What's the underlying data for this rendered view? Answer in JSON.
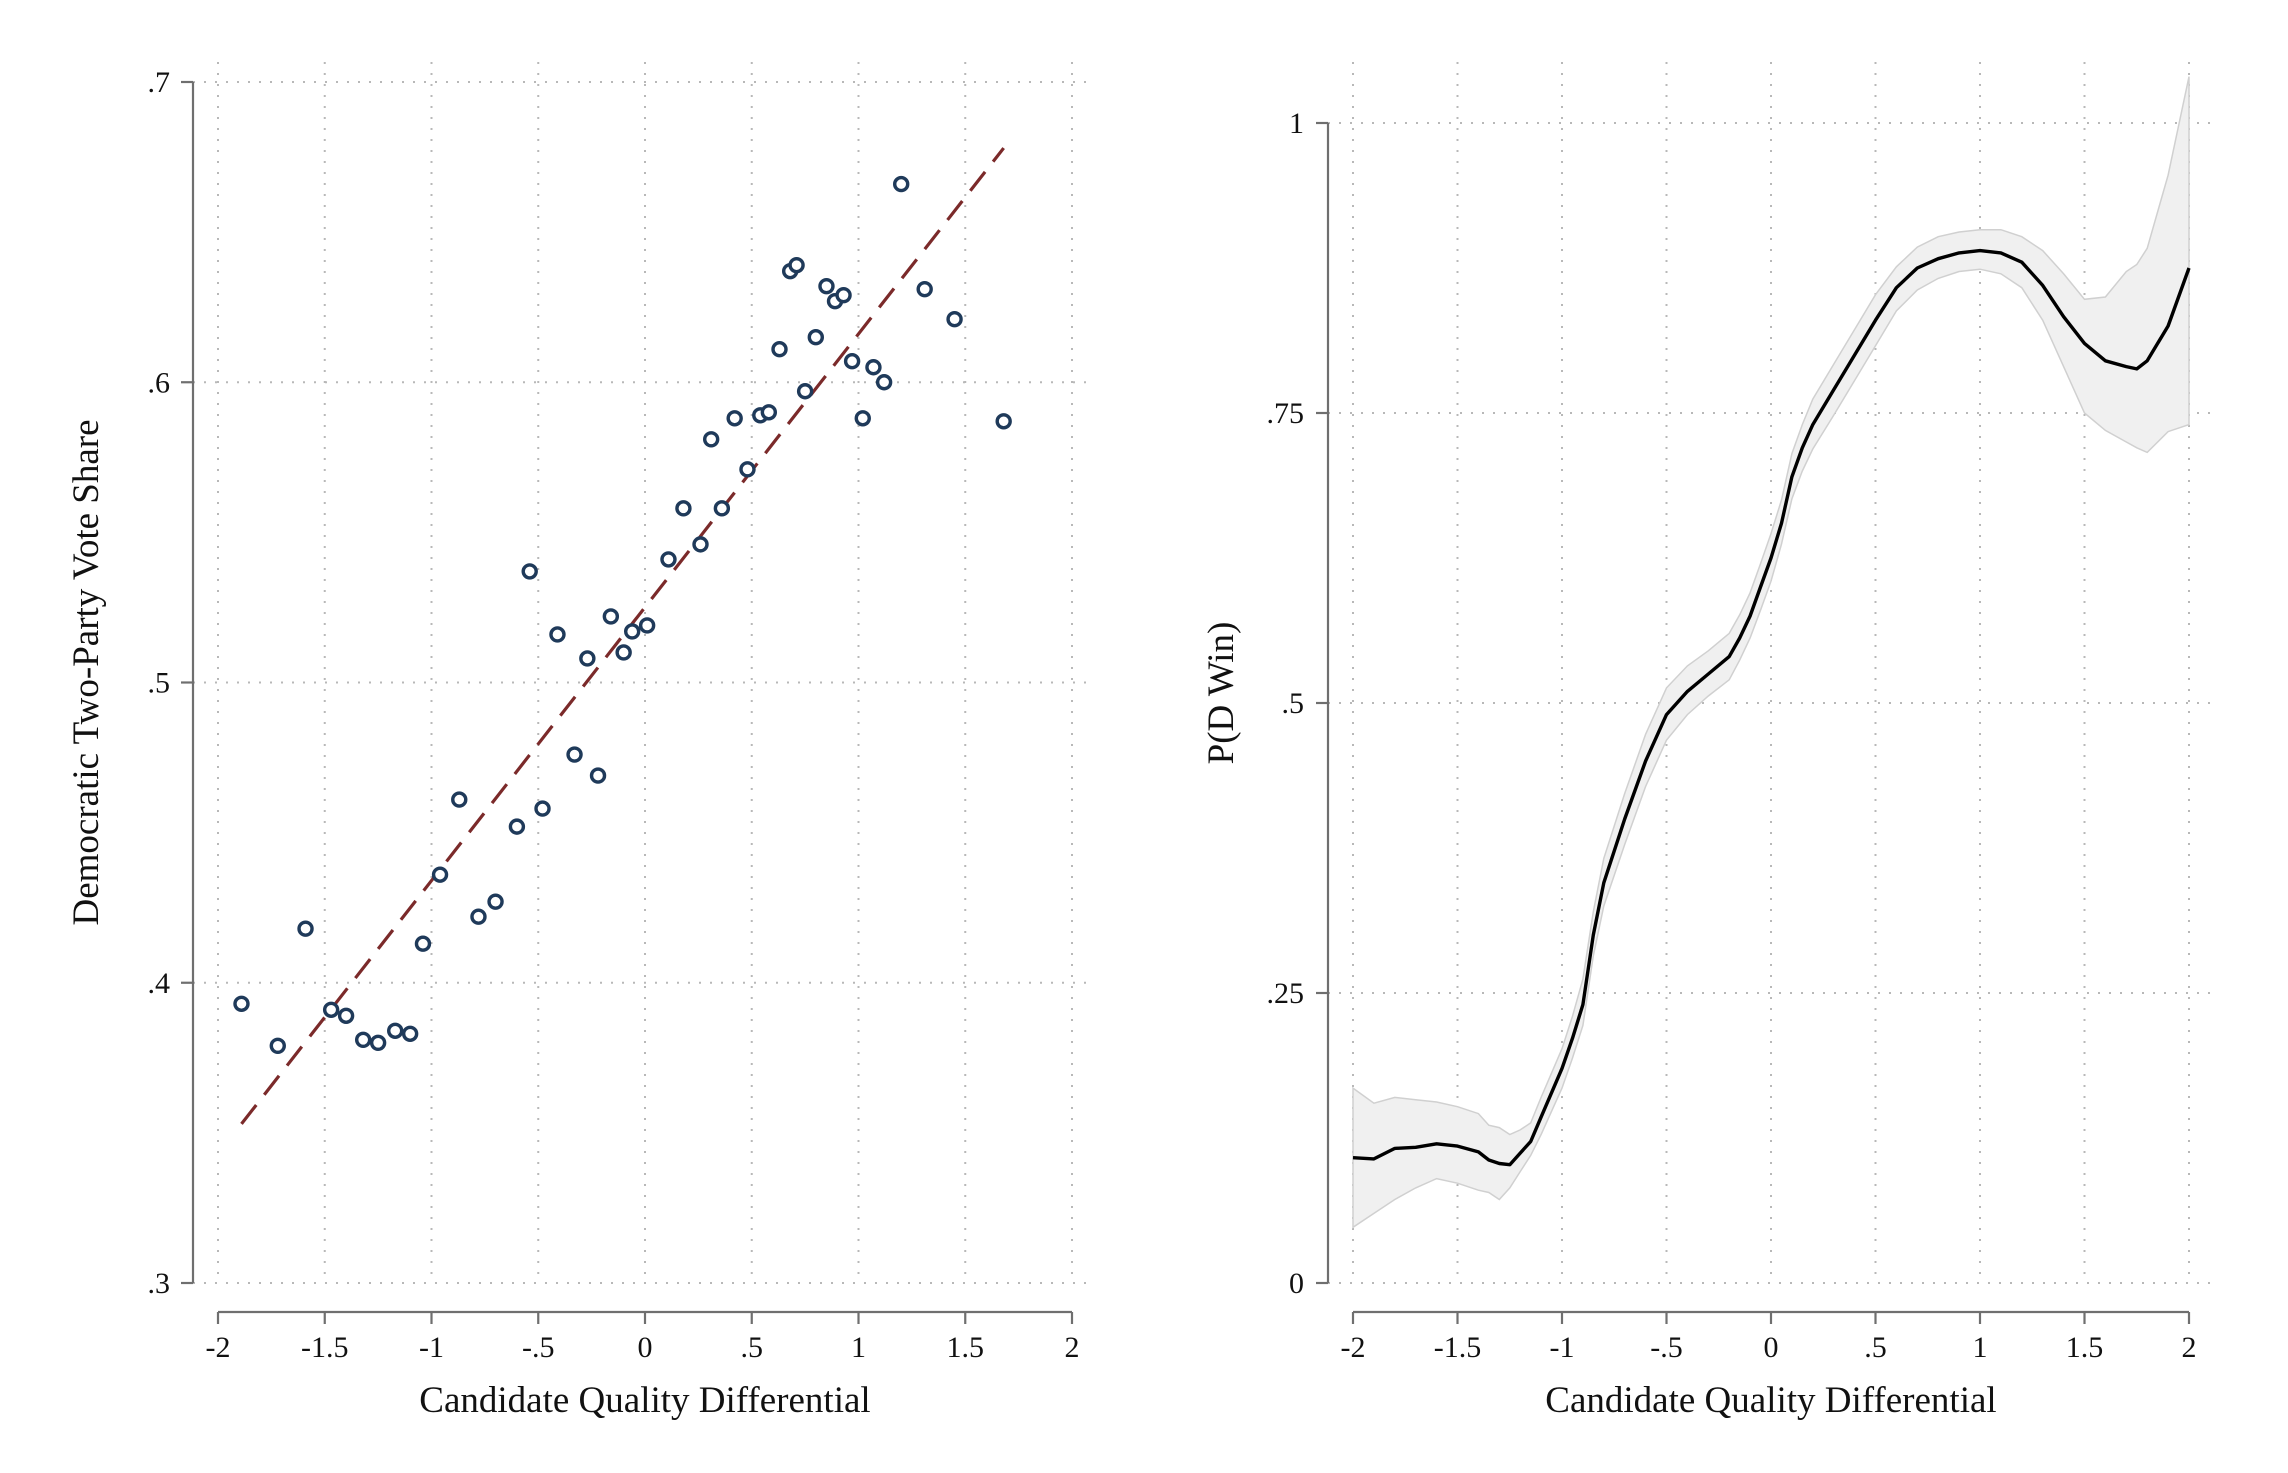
{
  "chart_data": [
    {
      "type": "scatter",
      "xlabel": "Candidate Quality Differential",
      "ylabel": "Democratic Two-Party Vote Share",
      "xlim": [
        -2,
        2
      ],
      "ylim": [
        0.3,
        0.7
      ],
      "xticks": [
        {
          "value": -2,
          "label": "-2"
        },
        {
          "value": -1.5,
          "label": "-1.5"
        },
        {
          "value": -1,
          "label": "-1"
        },
        {
          "value": -0.5,
          "label": "-.5"
        },
        {
          "value": 0,
          "label": "0"
        },
        {
          "value": 0.5,
          "label": ".5"
        },
        {
          "value": 1,
          "label": "1"
        },
        {
          "value": 1.5,
          "label": "1.5"
        },
        {
          "value": 2,
          "label": "2"
        }
      ],
      "yticks": [
        {
          "value": 0.3,
          "label": ".3"
        },
        {
          "value": 0.4,
          "label": ".4"
        },
        {
          "value": 0.5,
          "label": ".5"
        },
        {
          "value": 0.6,
          "label": ".6"
        },
        {
          "value": 0.7,
          "label": ".7"
        }
      ],
      "grid": true,
      "marker_color": "#1f3a5a",
      "fit_color": "#7b2a2a",
      "points": [
        {
          "x": -1.89,
          "y": 0.393
        },
        {
          "x": -1.72,
          "y": 0.379
        },
        {
          "x": -1.59,
          "y": 0.418
        },
        {
          "x": -1.47,
          "y": 0.391
        },
        {
          "x": -1.4,
          "y": 0.389
        },
        {
          "x": -1.32,
          "y": 0.381
        },
        {
          "x": -1.25,
          "y": 0.38
        },
        {
          "x": -1.17,
          "y": 0.384
        },
        {
          "x": -1.1,
          "y": 0.383
        },
        {
          "x": -1.04,
          "y": 0.413
        },
        {
          "x": -0.96,
          "y": 0.436
        },
        {
          "x": -0.87,
          "y": 0.461
        },
        {
          "x": -0.78,
          "y": 0.422
        },
        {
          "x": -0.7,
          "y": 0.427
        },
        {
          "x": -0.6,
          "y": 0.452
        },
        {
          "x": -0.54,
          "y": 0.537
        },
        {
          "x": -0.48,
          "y": 0.458
        },
        {
          "x": -0.41,
          "y": 0.516
        },
        {
          "x": -0.33,
          "y": 0.476
        },
        {
          "x": -0.27,
          "y": 0.508
        },
        {
          "x": -0.22,
          "y": 0.469
        },
        {
          "x": -0.16,
          "y": 0.522
        },
        {
          "x": -0.1,
          "y": 0.51
        },
        {
          "x": -0.06,
          "y": 0.517
        },
        {
          "x": 0.01,
          "y": 0.519
        },
        {
          "x": 0.11,
          "y": 0.541
        },
        {
          "x": 0.18,
          "y": 0.558
        },
        {
          "x": 0.26,
          "y": 0.546
        },
        {
          "x": 0.31,
          "y": 0.581
        },
        {
          "x": 0.36,
          "y": 0.558
        },
        {
          "x": 0.42,
          "y": 0.588
        },
        {
          "x": 0.48,
          "y": 0.571
        },
        {
          "x": 0.54,
          "y": 0.589
        },
        {
          "x": 0.58,
          "y": 0.59
        },
        {
          "x": 0.63,
          "y": 0.611
        },
        {
          "x": 0.68,
          "y": 0.637
        },
        {
          "x": 0.71,
          "y": 0.639
        },
        {
          "x": 0.75,
          "y": 0.597
        },
        {
          "x": 0.8,
          "y": 0.615
        },
        {
          "x": 0.85,
          "y": 0.632
        },
        {
          "x": 0.89,
          "y": 0.627
        },
        {
          "x": 0.93,
          "y": 0.629
        },
        {
          "x": 0.97,
          "y": 0.607
        },
        {
          "x": 1.02,
          "y": 0.588
        },
        {
          "x": 1.07,
          "y": 0.605
        },
        {
          "x": 1.12,
          "y": 0.6
        },
        {
          "x": 1.2,
          "y": 0.666
        },
        {
          "x": 1.31,
          "y": 0.631
        },
        {
          "x": 1.45,
          "y": 0.621
        },
        {
          "x": 1.68,
          "y": 0.587
        }
      ],
      "fit_line": {
        "x": [
          -1.89,
          1.68
        ],
        "y": [
          0.353,
          0.678
        ]
      }
    },
    {
      "type": "line",
      "xlabel": "Candidate Quality Differential",
      "ylabel": "P(D Win)",
      "xlim": [
        -2,
        2
      ],
      "ylim": [
        0,
        1
      ],
      "xticks": [
        {
          "value": -2,
          "label": "-2"
        },
        {
          "value": -1.5,
          "label": "-1.5"
        },
        {
          "value": -1,
          "label": "-1"
        },
        {
          "value": -0.5,
          "label": "-.5"
        },
        {
          "value": 0,
          "label": "0"
        },
        {
          "value": 0.5,
          "label": ".5"
        },
        {
          "value": 1,
          "label": "1"
        },
        {
          "value": 1.5,
          "label": "1.5"
        },
        {
          "value": 2,
          "label": "2"
        }
      ],
      "yticks": [
        {
          "value": 0,
          "label": "0"
        },
        {
          "value": 0.25,
          "label": ".25"
        },
        {
          "value": 0.5,
          "label": ".5"
        },
        {
          "value": 0.75,
          "label": ".75"
        },
        {
          "value": 1,
          "label": "1"
        }
      ],
      "grid": true,
      "line_color": "#000000",
      "band_color": "#f0f0f0",
      "band_edge_color": "#d0d0d0",
      "x": [
        -2.0,
        -1.9,
        -1.8,
        -1.7,
        -1.6,
        -1.5,
        -1.4,
        -1.35,
        -1.3,
        -1.25,
        -1.2,
        -1.15,
        -1.1,
        -1.0,
        -0.95,
        -0.9,
        -0.85,
        -0.8,
        -0.7,
        -0.6,
        -0.5,
        -0.4,
        -0.3,
        -0.2,
        -0.15,
        -0.1,
        -0.05,
        0.0,
        0.05,
        0.1,
        0.15,
        0.2,
        0.3,
        0.4,
        0.5,
        0.6,
        0.7,
        0.8,
        0.9,
        1.0,
        1.1,
        1.2,
        1.3,
        1.4,
        1.5,
        1.6,
        1.7,
        1.75,
        1.8,
        1.9,
        2.0
      ],
      "y": [
        0.108,
        0.107,
        0.116,
        0.117,
        0.12,
        0.118,
        0.113,
        0.106,
        0.103,
        0.102,
        0.112,
        0.122,
        0.143,
        0.185,
        0.211,
        0.24,
        0.3,
        0.345,
        0.4,
        0.45,
        0.49,
        0.51,
        0.525,
        0.54,
        0.556,
        0.575,
        0.6,
        0.625,
        0.655,
        0.695,
        0.72,
        0.74,
        0.77,
        0.8,
        0.83,
        0.858,
        0.875,
        0.883,
        0.888,
        0.89,
        0.888,
        0.88,
        0.86,
        0.833,
        0.81,
        0.795,
        0.79,
        0.788,
        0.795,
        0.825,
        0.875
      ],
      "ci_low": [
        0.048,
        0.06,
        0.072,
        0.082,
        0.09,
        0.086,
        0.08,
        0.078,
        0.072,
        0.082,
        0.096,
        0.11,
        0.128,
        0.168,
        0.194,
        0.222,
        0.282,
        0.325,
        0.378,
        0.428,
        0.468,
        0.49,
        0.506,
        0.52,
        0.537,
        0.556,
        0.58,
        0.605,
        0.637,
        0.676,
        0.7,
        0.719,
        0.748,
        0.778,
        0.808,
        0.838,
        0.856,
        0.866,
        0.872,
        0.874,
        0.87,
        0.858,
        0.83,
        0.79,
        0.75,
        0.735,
        0.725,
        0.72,
        0.716,
        0.734,
        0.74
      ],
      "ci_high": [
        0.168,
        0.155,
        0.16,
        0.158,
        0.156,
        0.152,
        0.146,
        0.136,
        0.134,
        0.128,
        0.132,
        0.138,
        0.16,
        0.202,
        0.23,
        0.262,
        0.32,
        0.366,
        0.422,
        0.473,
        0.513,
        0.532,
        0.545,
        0.56,
        0.576,
        0.595,
        0.62,
        0.646,
        0.675,
        0.715,
        0.74,
        0.762,
        0.792,
        0.822,
        0.852,
        0.876,
        0.893,
        0.902,
        0.906,
        0.908,
        0.908,
        0.902,
        0.89,
        0.87,
        0.848,
        0.85,
        0.872,
        0.878,
        0.892,
        0.955,
        1.04
      ]
    }
  ]
}
